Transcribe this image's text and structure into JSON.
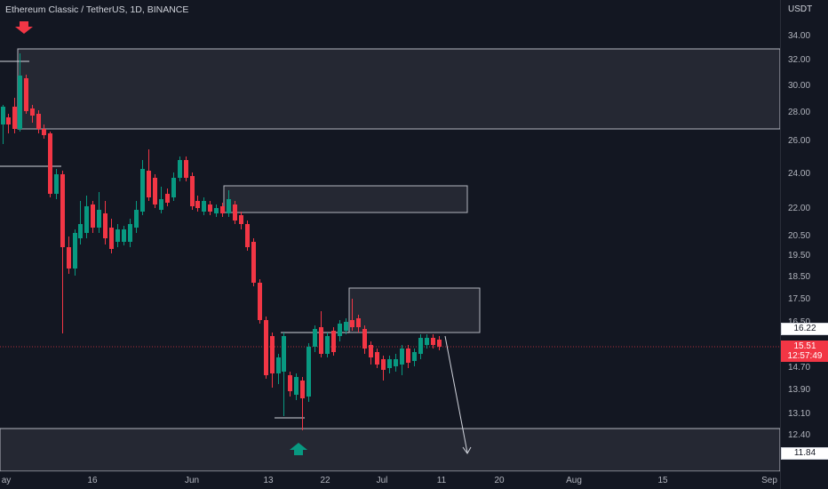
{
  "title": "Ethereum Classic / TetherUS, 1D, BINANCE",
  "currency": "USDT",
  "price_axis": {
    "ticks": [
      "34.00",
      "32.00",
      "30.00",
      "28.00",
      "26.00",
      "24.00",
      "22.00",
      "20.50",
      "19.50",
      "18.50",
      "17.50",
      "16.50",
      "14.70",
      "13.90",
      "13.10",
      "12.40"
    ]
  },
  "time_axis": {
    "ticks": [
      "ay",
      "16",
      "Jun",
      "13",
      "22",
      "Jul",
      "11",
      "20",
      "Aug",
      "15",
      "Sep"
    ]
  },
  "badges": {
    "level_top": "16.22",
    "last_price": "15.51",
    "countdown": "12:57:49",
    "level_bottom": "11.84"
  },
  "colors": {
    "up": "#089981",
    "down": "#f23645",
    "background": "#131722",
    "zone_fill": "#787b86",
    "zone_border": "#b2b5be"
  }
}
